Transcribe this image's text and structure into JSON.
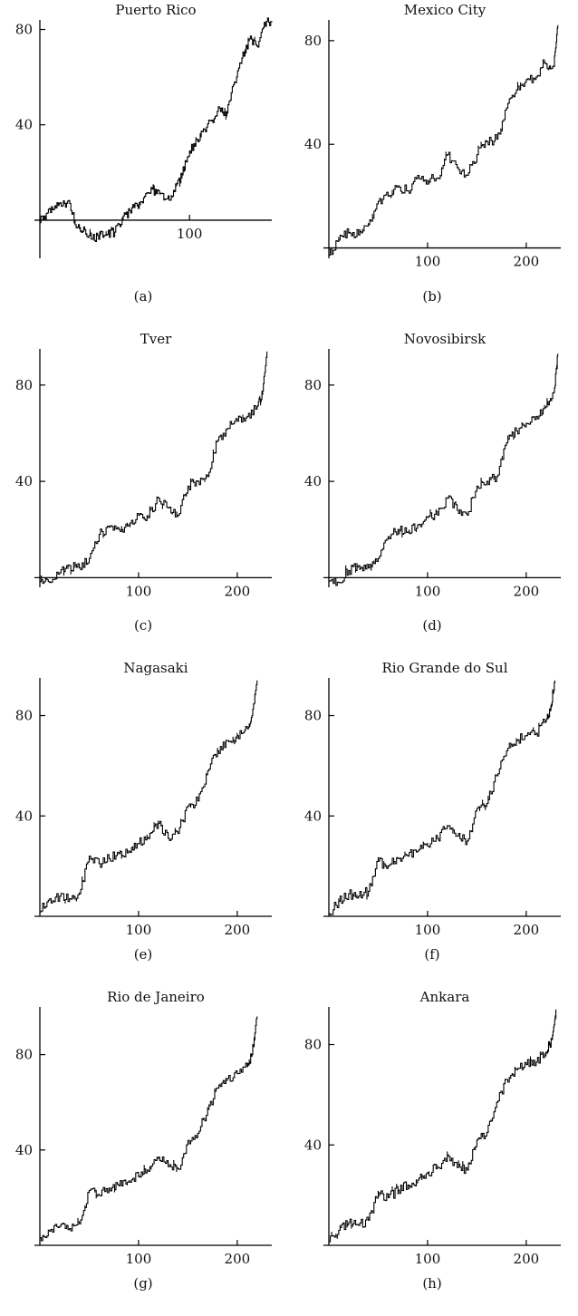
{
  "chart_data": [
    {
      "id": "a",
      "type": "line",
      "title": "Puerto Rico",
      "panel_label": "(a)",
      "xlim": [
        0,
        155
      ],
      "ylim": [
        -16,
        84
      ],
      "xticks": [
        100
      ],
      "yticks": [
        40,
        80
      ],
      "grid": false,
      "series": [
        {
          "x": [
            0,
            5,
            10,
            15,
            20,
            25,
            30,
            35,
            40,
            45,
            50,
            55,
            60,
            65,
            70,
            75,
            80,
            85,
            90,
            95,
            100,
            105,
            110,
            115,
            120,
            125,
            130,
            135,
            140,
            145,
            150,
            155
          ],
          "y": [
            0,
            3,
            6,
            6,
            7,
            -3,
            -4,
            -8,
            -6,
            -6,
            -5,
            0,
            4,
            6,
            10,
            13,
            11,
            9,
            12,
            19,
            29,
            34,
            38,
            42,
            47,
            45,
            58,
            68,
            76,
            73,
            83,
            83
          ]
        }
      ]
    },
    {
      "id": "b",
      "type": "line",
      "title": "Mexico City",
      "panel_label": "(b)",
      "xlim": [
        0,
        235
      ],
      "ylim": [
        -4,
        88
      ],
      "xticks": [
        100,
        200
      ],
      "yticks": [
        40,
        80
      ],
      "grid": false,
      "series": [
        {
          "x": [
            0,
            10,
            20,
            30,
            40,
            50,
            60,
            70,
            80,
            90,
            100,
            110,
            120,
            130,
            140,
            150,
            160,
            170,
            180,
            190,
            200,
            210,
            220,
            228,
            232
          ],
          "y": [
            -2,
            3,
            6,
            5,
            9,
            18,
            20,
            24,
            22,
            28,
            26,
            27,
            36,
            31,
            28,
            36,
            41,
            42,
            54,
            61,
            65,
            66,
            71,
            70,
            86
          ]
        }
      ]
    },
    {
      "id": "c",
      "type": "line",
      "title": "Tver",
      "panel_label": "(c)",
      "xlim": [
        0,
        235
      ],
      "ylim": [
        -4,
        95
      ],
      "xticks": [
        100,
        200
      ],
      "yticks": [
        40,
        80
      ],
      "grid": false,
      "series": [
        {
          "x": [
            0,
            10,
            20,
            30,
            40,
            50,
            60,
            70,
            80,
            90,
            100,
            110,
            120,
            130,
            140,
            150,
            160,
            170,
            180,
            190,
            200,
            210,
            220,
            225,
            230
          ],
          "y": [
            -1,
            -2,
            2,
            5,
            4,
            8,
            18,
            21,
            20,
            22,
            26,
            25,
            33,
            29,
            26,
            38,
            40,
            42,
            57,
            62,
            65,
            67,
            71,
            76,
            93
          ]
        }
      ]
    },
    {
      "id": "d",
      "type": "line",
      "title": "Novosibirsk",
      "panel_label": "(d)",
      "xlim": [
        0,
        235
      ],
      "ylim": [
        -4,
        95
      ],
      "xticks": [
        100,
        200
      ],
      "yticks": [
        40,
        80
      ],
      "grid": false,
      "series": [
        {
          "x": [
            0,
            10,
            20,
            30,
            40,
            50,
            60,
            70,
            80,
            90,
            100,
            110,
            120,
            130,
            140,
            150,
            160,
            170,
            180,
            190,
            200,
            210,
            220,
            228,
            232
          ],
          "y": [
            -1,
            -2,
            3,
            5,
            4,
            8,
            17,
            20,
            19,
            22,
            25,
            26,
            33,
            28,
            26,
            38,
            40,
            42,
            56,
            61,
            64,
            67,
            71,
            77,
            93
          ]
        }
      ]
    },
    {
      "id": "e",
      "type": "line",
      "title": "Nagasaki",
      "panel_label": "(e)",
      "xlim": [
        0,
        235
      ],
      "ylim": [
        0,
        95
      ],
      "xticks": [
        100,
        200
      ],
      "yticks": [
        40,
        80
      ],
      "grid": false,
      "series": [
        {
          "x": [
            0,
            10,
            20,
            30,
            40,
            50,
            60,
            70,
            80,
            90,
            100,
            110,
            120,
            130,
            140,
            150,
            160,
            170,
            180,
            190,
            200,
            210,
            215,
            220
          ],
          "y": [
            2,
            7,
            8,
            7,
            9,
            24,
            21,
            23,
            25,
            26,
            29,
            31,
            37,
            31,
            33,
            44,
            46,
            58,
            66,
            70,
            72,
            75,
            80,
            94
          ]
        }
      ]
    },
    {
      "id": "f",
      "type": "line",
      "title": "Rio Grande do Sul",
      "panel_label": "(f)",
      "xlim": [
        0,
        235
      ],
      "ylim": [
        0,
        95
      ],
      "xticks": [
        100,
        200
      ],
      "yticks": [
        40,
        80
      ],
      "grid": false,
      "series": [
        {
          "x": [
            0,
            10,
            20,
            30,
            40,
            50,
            60,
            70,
            80,
            90,
            100,
            110,
            120,
            130,
            140,
            150,
            160,
            170,
            180,
            190,
            200,
            210,
            220,
            225,
            229
          ],
          "y": [
            1,
            6,
            9,
            8,
            10,
            22,
            20,
            23,
            24,
            26,
            28,
            31,
            36,
            32,
            30,
            43,
            45,
            56,
            66,
            70,
            72,
            73,
            78,
            84,
            94
          ]
        }
      ]
    },
    {
      "id": "g",
      "type": "line",
      "title": "Rio de Janeiro",
      "panel_label": "(g)",
      "xlim": [
        0,
        235
      ],
      "ylim": [
        0,
        100
      ],
      "xticks": [
        100,
        200
      ],
      "yticks": [
        40,
        80
      ],
      "grid": false,
      "series": [
        {
          "x": [
            0,
            10,
            20,
            30,
            40,
            50,
            60,
            70,
            80,
            90,
            100,
            110,
            120,
            130,
            140,
            150,
            160,
            170,
            180,
            190,
            200,
            210,
            215,
            220
          ],
          "y": [
            3,
            6,
            8,
            7,
            9,
            23,
            21,
            24,
            25,
            27,
            29,
            31,
            37,
            33,
            32,
            44,
            47,
            57,
            66,
            70,
            72,
            75,
            80,
            96
          ]
        }
      ]
    },
    {
      "id": "h",
      "type": "line",
      "title": "Ankara",
      "panel_label": "(h)",
      "xlim": [
        0,
        235
      ],
      "ylim": [
        0,
        95
      ],
      "xticks": [
        100,
        200
      ],
      "yticks": [
        40,
        80
      ],
      "grid": false,
      "series": [
        {
          "x": [
            0,
            10,
            20,
            30,
            40,
            50,
            60,
            70,
            80,
            90,
            100,
            110,
            120,
            130,
            140,
            150,
            160,
            170,
            180,
            190,
            200,
            210,
            220,
            226,
            230
          ],
          "y": [
            1,
            6,
            9,
            8,
            10,
            21,
            19,
            22,
            24,
            26,
            29,
            31,
            36,
            31,
            30,
            42,
            45,
            57,
            66,
            70,
            72,
            73,
            77,
            82,
            94
          ]
        }
      ]
    }
  ]
}
